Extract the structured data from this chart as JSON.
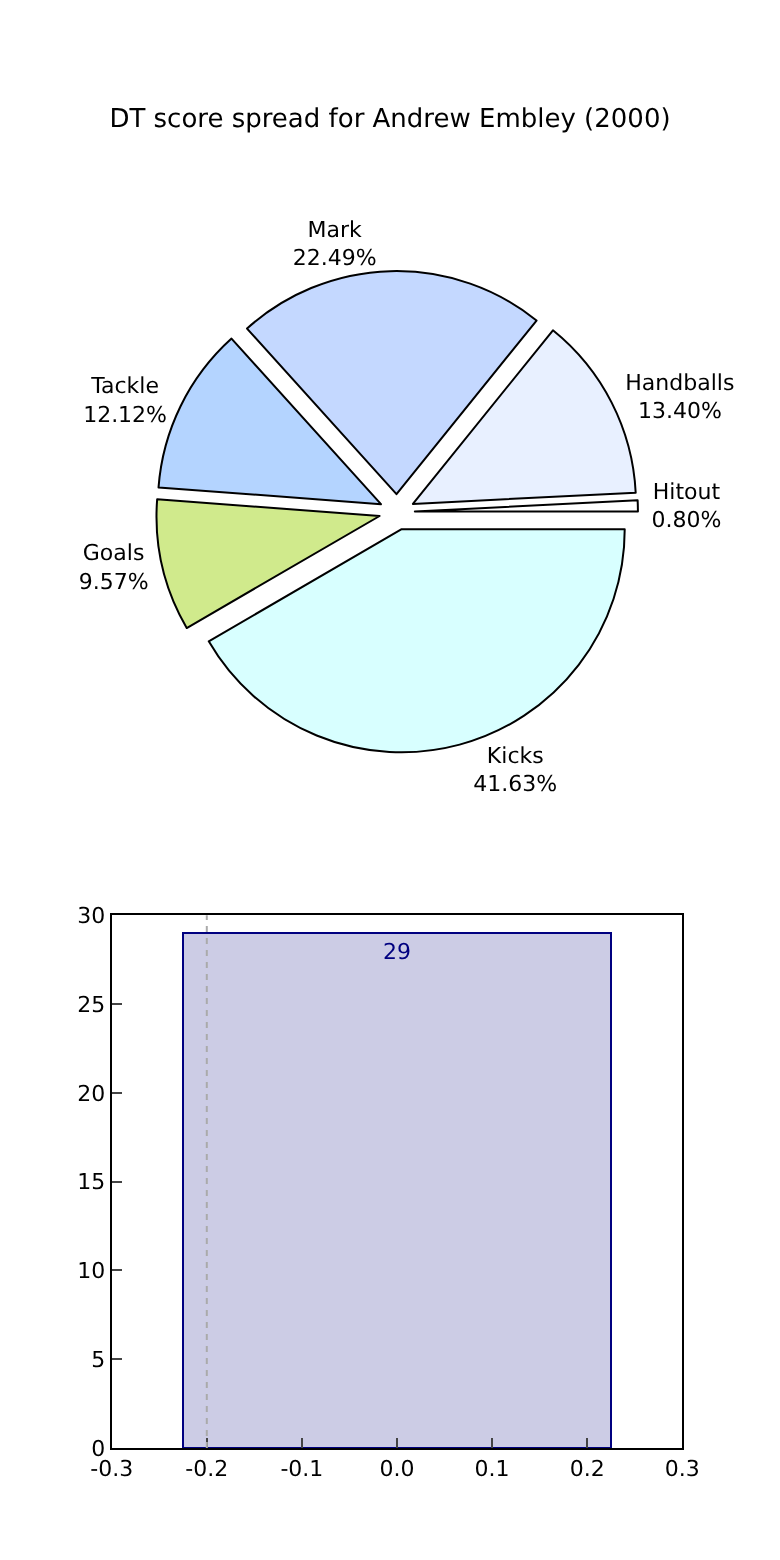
{
  "chart_data": [
    {
      "type": "pie",
      "title": "DT score spread for Andrew Embley (2000)",
      "categories": [
        "Kicks",
        "Hitout",
        "Handballs",
        "Mark",
        "Tackle",
        "Goals"
      ],
      "values": [
        41.63,
        0.8,
        13.4,
        22.49,
        12.12,
        9.57
      ],
      "value_labels": [
        "41.63%",
        "0.80%",
        "13.40%",
        "22.49%",
        "12.12%",
        "9.57%"
      ],
      "colors": [
        "#d8ffff",
        "#ffffff",
        "#e8f0ff",
        "#c4d8ff",
        "#b4d4ff",
        "#d0ea8c"
      ]
    },
    {
      "type": "bar",
      "x": [
        0
      ],
      "values": [
        29
      ],
      "color": "#ccccE5",
      "data_labels": true,
      "xlim": [
        -0.3,
        0.3
      ],
      "xticks": [
        -0.3,
        -0.2,
        -0.1,
        {
          "value": 0,
          "label": "0.0"
        },
        0.1,
        0.2,
        0.3
      ],
      "ylim": [
        0,
        30
      ],
      "yticks": [
        0,
        5,
        10,
        15,
        20,
        25,
        30
      ],
      "ref_lines": [
        {
          "axis": "x",
          "value": -0.2,
          "color": "#aaaaaa",
          "line_style": "dotted"
        }
      ]
    }
  ]
}
